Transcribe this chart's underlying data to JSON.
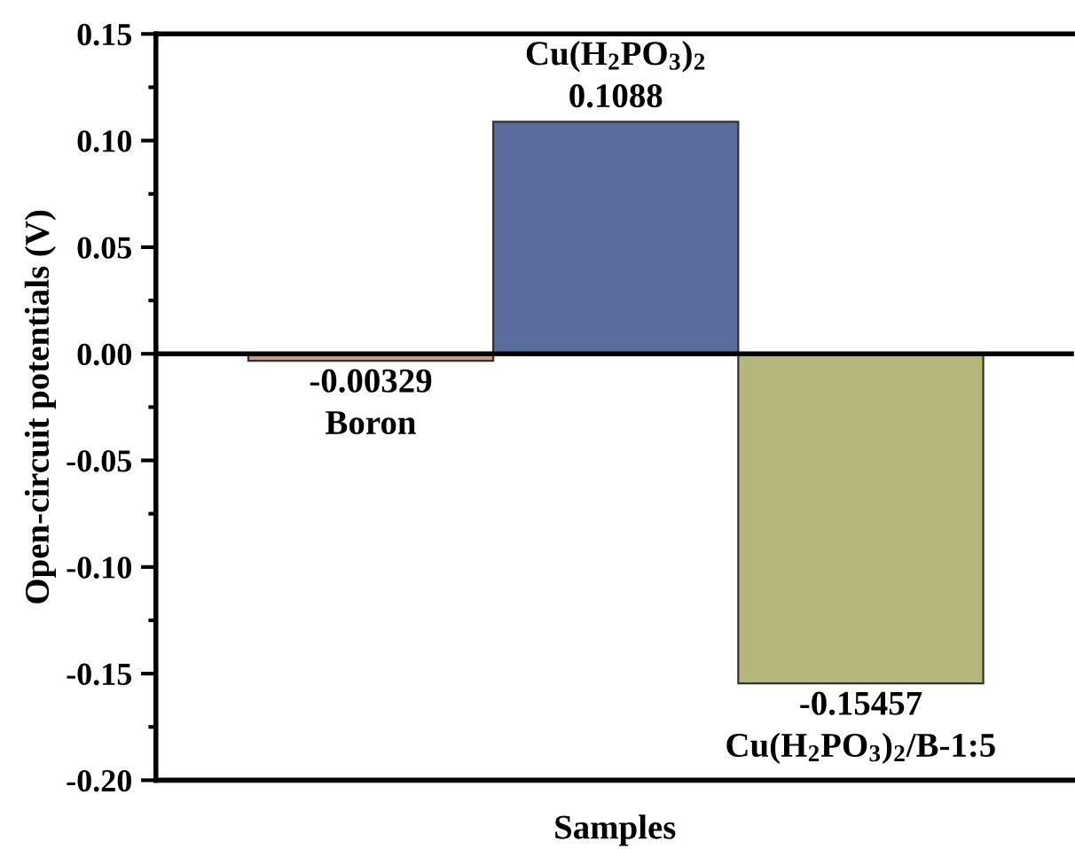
{
  "chart_data": {
    "type": "bar",
    "xlabel": "Samples",
    "ylabel": "Open-circuit potentials (V)",
    "categories": [
      "Boron",
      "Cu(H$_{2}$PO$_{3}$)$_{2}$",
      "Cu(H$_{2}$PO$_{3}$)$_{2}$/B-1:5"
    ],
    "values": [
      -0.00329,
      0.1088,
      -0.15457
    ],
    "colors": [
      "#c49a86",
      "#5a6d9c",
      "#b4b67c"
    ],
    "value_labels": [
      "-0.00329",
      "0.1088",
      "-0.15457"
    ],
    "ylim": [
      -0.2,
      0.15
    ],
    "yticks": [
      {
        "value": -0.2,
        "label": "-0.20"
      },
      {
        "value": -0.15,
        "label": "-0.15"
      },
      {
        "value": -0.1,
        "label": "-0.10"
      },
      {
        "value": -0.05,
        "label": "-0.05"
      },
      {
        "value": 0.0,
        "label": "0.00"
      },
      {
        "value": 0.05,
        "label": "0.05"
      },
      {
        "value": 0.1,
        "label": "0.10"
      },
      {
        "value": 0.15,
        "label": "0.15"
      }
    ],
    "ref_lines": [
      {
        "axis": "y",
        "value": 0,
        "label": null,
        "color": "#000000"
      }
    ],
    "grid": false,
    "legend": false
  }
}
